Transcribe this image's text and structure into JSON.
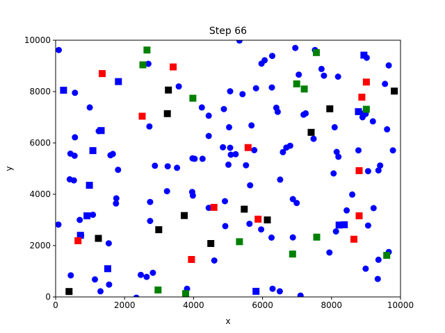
{
  "chart_data": {
    "type": "scatter",
    "title": "Step 66",
    "xlabel": "x",
    "ylabel": "y",
    "xlim": [
      0,
      10000
    ],
    "ylim": [
      0,
      10000
    ],
    "x_ticks": [
      0,
      2000,
      4000,
      6000,
      8000,
      10000
    ],
    "y_ticks": [
      0,
      2000,
      4000,
      6000,
      8000,
      10000
    ],
    "x_tick_labels": [
      "0",
      "2000",
      "4000",
      "6000",
      "8000",
      "10000"
    ],
    "y_tick_labels": [
      "0",
      "2000",
      "4000",
      "6000",
      "8000",
      "10000"
    ],
    "grid": false,
    "legend": "none",
    "series": [
      {
        "marker": "circle",
        "color": "#0000ff",
        "points": [
          [
            90,
            9620
          ],
          [
            560,
            7950
          ],
          [
            990,
            7380
          ],
          [
            560,
            6220
          ],
          [
            430,
            5580
          ],
          [
            550,
            5500
          ],
          [
            410,
            4580
          ],
          [
            530,
            4540
          ],
          [
            80,
            2820
          ],
          [
            700,
            3000
          ],
          [
            740,
            2400
          ],
          [
            1080,
            3200
          ],
          [
            1540,
            2090
          ],
          [
            1140,
            680
          ],
          [
            1300,
            220
          ],
          [
            1550,
            480
          ],
          [
            440,
            840
          ],
          [
            1250,
            6460
          ],
          [
            1590,
            5520
          ],
          [
            1660,
            5570
          ],
          [
            1810,
            4950
          ],
          [
            1760,
            3840
          ],
          [
            1750,
            3640
          ],
          [
            2690,
            9080
          ],
          [
            2720,
            6640
          ],
          [
            2880,
            5110
          ],
          [
            3250,
            5090
          ],
          [
            3520,
            5030
          ],
          [
            2740,
            3700
          ],
          [
            3230,
            4120
          ],
          [
            2740,
            2960
          ],
          [
            2470,
            860
          ],
          [
            2820,
            940
          ],
          [
            2640,
            780
          ],
          [
            2340,
            -30
          ],
          [
            3810,
            320
          ],
          [
            3570,
            8200
          ],
          [
            4240,
            7380
          ],
          [
            4440,
            7060
          ],
          [
            4880,
            7320
          ],
          [
            5060,
            8010
          ],
          [
            5420,
            7900
          ],
          [
            5330,
            9990
          ],
          [
            5030,
            6610
          ],
          [
            4850,
            5830
          ],
          [
            4440,
            6270
          ],
          [
            5060,
            5810
          ],
          [
            5220,
            5560
          ],
          [
            5080,
            5540
          ],
          [
            5520,
            5130
          ],
          [
            5760,
            5720
          ],
          [
            5010,
            5150
          ],
          [
            3970,
            5400
          ],
          [
            4030,
            5380
          ],
          [
            4260,
            5380
          ],
          [
            3960,
            4090
          ],
          [
            3980,
            3950
          ],
          [
            4440,
            3470
          ],
          [
            4910,
            3730
          ],
          [
            4600,
            1420
          ],
          [
            4920,
            2760
          ],
          [
            5640,
            4350
          ],
          [
            5680,
            6680
          ],
          [
            5620,
            2850
          ],
          [
            5810,
            8130
          ],
          [
            5970,
            9090
          ],
          [
            6060,
            9220
          ],
          [
            6280,
            9390
          ],
          [
            6270,
            8160
          ],
          [
            6400,
            7370
          ],
          [
            6440,
            7210
          ],
          [
            6510,
            4570
          ],
          [
            6590,
            5640
          ],
          [
            6690,
            5820
          ],
          [
            6800,
            5890
          ],
          [
            6880,
            3810
          ],
          [
            6880,
            2320
          ],
          [
            6990,
            3660
          ],
          [
            5960,
            2630
          ],
          [
            6260,
            2310
          ],
          [
            6290,
            320
          ],
          [
            6500,
            220
          ],
          [
            7050,
            8660
          ],
          [
            6950,
            9700
          ],
          [
            7100,
            50
          ],
          [
            7190,
            7100
          ],
          [
            7250,
            7150
          ],
          [
            7480,
            6160
          ],
          [
            7520,
            9620
          ],
          [
            7710,
            8880
          ],
          [
            7780,
            8620
          ],
          [
            8090,
            6610
          ],
          [
            8150,
            5650
          ],
          [
            8200,
            5460
          ],
          [
            8190,
            8580
          ],
          [
            8060,
            4810
          ],
          [
            8130,
            2550
          ],
          [
            7940,
            1730
          ],
          [
            8440,
            3370
          ],
          [
            8600,
            3990
          ],
          [
            8780,
            5710
          ],
          [
            8900,
            7140
          ],
          [
            8900,
            7000
          ],
          [
            8990,
            7130
          ],
          [
            9060,
            4900
          ],
          [
            9020,
            9320
          ],
          [
            9200,
            6840
          ],
          [
            9360,
            4930
          ],
          [
            9410,
            5120
          ],
          [
            9550,
            8300
          ],
          [
            9660,
            9020
          ],
          [
            9610,
            6530
          ],
          [
            9780,
            5710
          ],
          [
            9660,
            1750
          ],
          [
            9360,
            1450
          ],
          [
            9340,
            700
          ],
          [
            8990,
            1100
          ],
          [
            9220,
            3460
          ],
          [
            9060,
            2780
          ]
        ]
      },
      {
        "marker": "square",
        "color": "#0000ff",
        "points": [
          [
            230,
            8050
          ],
          [
            1820,
            8390
          ],
          [
            1080,
            5700
          ],
          [
            1320,
            6480
          ],
          [
            980,
            4350
          ],
          [
            910,
            3160
          ],
          [
            720,
            2400
          ],
          [
            1510,
            1100
          ],
          [
            5810,
            220
          ],
          [
            8220,
            2800
          ],
          [
            8370,
            2810
          ],
          [
            8780,
            7220
          ],
          [
            8940,
            9420
          ]
        ]
      },
      {
        "marker": "square",
        "color": "#ff0000",
        "points": [
          [
            1350,
            8700
          ],
          [
            3410,
            8960
          ],
          [
            2510,
            7040
          ],
          [
            650,
            2190
          ],
          [
            5580,
            5820
          ],
          [
            4590,
            3490
          ],
          [
            5870,
            3030
          ],
          [
            3940,
            1460
          ],
          [
            9010,
            8370
          ],
          [
            8880,
            7780
          ],
          [
            8800,
            4920
          ],
          [
            8800,
            3160
          ],
          [
            8650,
            2250
          ]
        ]
      },
      {
        "marker": "square",
        "color": "#000000",
        "points": [
          [
            3270,
            8060
          ],
          [
            3240,
            7140
          ],
          [
            3730,
            3170
          ],
          [
            2990,
            2620
          ],
          [
            1240,
            2280
          ],
          [
            390,
            210
          ],
          [
            5470,
            3420
          ],
          [
            6140,
            3000
          ],
          [
            4500,
            2080
          ],
          [
            7950,
            7330
          ],
          [
            7410,
            6410
          ],
          [
            9820,
            8020
          ]
        ]
      },
      {
        "marker": "square",
        "color": "#008000",
        "points": [
          [
            2650,
            9620
          ],
          [
            2530,
            9040
          ],
          [
            3980,
            7740
          ],
          [
            6990,
            8300
          ],
          [
            7210,
            8100
          ],
          [
            7560,
            9520
          ],
          [
            9010,
            7310
          ],
          [
            5330,
            2150
          ],
          [
            7570,
            2330
          ],
          [
            6870,
            1670
          ],
          [
            9600,
            1620
          ],
          [
            2970,
            270
          ],
          [
            3770,
            130
          ]
        ]
      }
    ]
  }
}
